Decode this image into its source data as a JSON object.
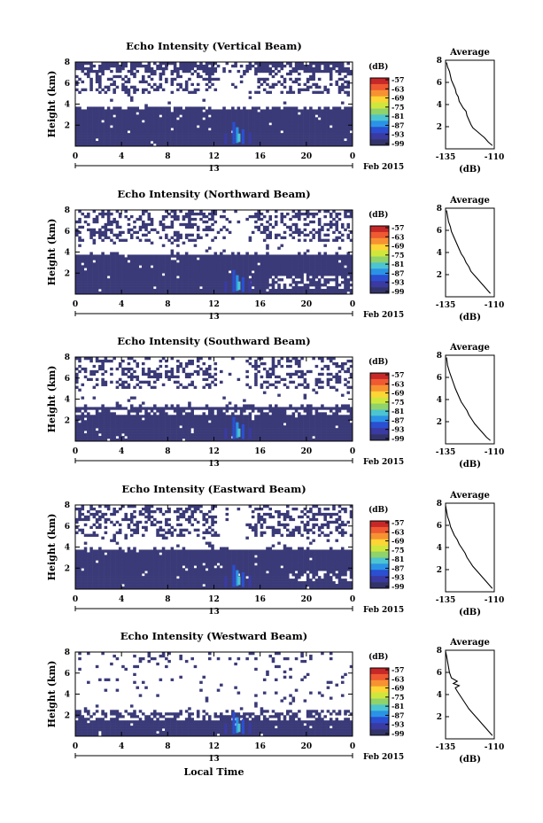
{
  "chart_data": {
    "type": "heatmap",
    "x_ticks": [
      "0",
      "4",
      "8",
      "12",
      "16",
      "20",
      "0"
    ],
    "x_range": [
      0,
      24
    ],
    "date_center": "13",
    "date_label": "Feb 2015",
    "xlabel": "Local Time",
    "ylabel": "Height (km)",
    "y_range": [
      0,
      8
    ],
    "y_ticks": [
      "2",
      "4",
      "6",
      "8"
    ],
    "colorbar": {
      "unit": "(dB)",
      "ticks": [
        "-57",
        "-63",
        "-69",
        "-75",
        "-81",
        "-87",
        "-93",
        "-99"
      ],
      "colors": [
        "#c62828",
        "#ef5a32",
        "#f79232",
        "#fdd535",
        "#cfe73d",
        "#8fd36a",
        "#4cc4d1",
        "#2b93e6",
        "#2b4fd0",
        "#3a3aa3",
        "#33336b"
      ]
    },
    "avg_title": "Average",
    "avg_xlabel": "(dB)",
    "avg_ylim": [
      0,
      8
    ],
    "avg_y_ticks": [
      "2",
      "4",
      "6",
      "8"
    ],
    "panels": [
      {
        "title": "Echo Intensity (Vertical Beam)",
        "avg_xticks": [
          "-135",
          "-110"
        ],
        "avg_xlim": [
          -135,
          -110
        ],
        "avg_profile": [
          [
            -111,
            0.3
          ],
          [
            -113,
            0.6
          ],
          [
            -115,
            1.0
          ],
          [
            -117,
            1.3
          ],
          [
            -119,
            1.6
          ],
          [
            -121,
            1.9
          ],
          [
            -122,
            2.2
          ],
          [
            -123,
            2.6
          ],
          [
            -124,
            3.0
          ],
          [
            -124.5,
            3.4
          ],
          [
            -126,
            3.7
          ],
          [
            -127,
            4.0
          ],
          [
            -128,
            4.3
          ],
          [
            -128.5,
            4.7
          ],
          [
            -129.5,
            5.0
          ],
          [
            -130,
            5.4
          ],
          [
            -131,
            5.8
          ],
          [
            -132,
            6.2
          ],
          [
            -132.5,
            6.6
          ],
          [
            -133,
            7.0
          ],
          [
            -134,
            7.4
          ],
          [
            -134.5,
            7.8
          ]
        ]
      },
      {
        "title": "Echo Intensity (Northward Beam)",
        "avg_xticks": [
          "-135",
          "-110"
        ],
        "avg_xlim": [
          -135,
          -110
        ],
        "avg_profile": [
          [
            -112,
            0.3
          ],
          [
            -114,
            0.7
          ],
          [
            -116,
            1.1
          ],
          [
            -118,
            1.5
          ],
          [
            -120,
            1.9
          ],
          [
            -122,
            2.3
          ],
          [
            -123,
            2.7
          ],
          [
            -124.5,
            3.1
          ],
          [
            -125.5,
            3.5
          ],
          [
            -127,
            3.9
          ],
          [
            -128,
            4.3
          ],
          [
            -129,
            4.7
          ],
          [
            -130,
            5.1
          ],
          [
            -131,
            5.5
          ],
          [
            -132,
            5.9
          ],
          [
            -132.5,
            6.3
          ],
          [
            -133.5,
            6.8
          ],
          [
            -134,
            7.3
          ],
          [
            -134.5,
            7.8
          ]
        ]
      },
      {
        "title": "Echo Intensity (Southward Beam)",
        "avg_xticks": [
          "-135",
          "-110"
        ],
        "avg_xlim": [
          -135,
          -110
        ],
        "avg_profile": [
          [
            -112,
            0.3
          ],
          [
            -114,
            0.6
          ],
          [
            -116,
            1.0
          ],
          [
            -118,
            1.4
          ],
          [
            -120,
            1.8
          ],
          [
            -121.5,
            2.2
          ],
          [
            -123,
            2.6
          ],
          [
            -124,
            3.0
          ],
          [
            -125.5,
            3.4
          ],
          [
            -127,
            3.8
          ],
          [
            -128,
            4.2
          ],
          [
            -129,
            4.6
          ],
          [
            -130,
            5.0
          ],
          [
            -131,
            5.5
          ],
          [
            -132,
            6.0
          ],
          [
            -133,
            6.5
          ],
          [
            -134,
            7.1
          ],
          [
            -134.5,
            7.8
          ]
        ]
      },
      {
        "title": "Echo Intensity (Eastward Beam)",
        "avg_xticks": [
          "-135",
          "-110"
        ],
        "avg_xlim": [
          -135,
          -110
        ],
        "avg_profile": [
          [
            -111,
            0.3
          ],
          [
            -113,
            0.7
          ],
          [
            -115,
            1.1
          ],
          [
            -117,
            1.5
          ],
          [
            -119,
            1.9
          ],
          [
            -121,
            2.3
          ],
          [
            -122.5,
            2.7
          ],
          [
            -124,
            3.1
          ],
          [
            -125,
            3.5
          ],
          [
            -126.5,
            3.9
          ],
          [
            -128,
            4.3
          ],
          [
            -129,
            4.7
          ],
          [
            -130.5,
            5.1
          ],
          [
            -131.5,
            5.5
          ],
          [
            -132.5,
            5.9
          ],
          [
            -133,
            6.3
          ],
          [
            -134,
            6.8
          ],
          [
            -134.5,
            7.3
          ],
          [
            -135,
            7.8
          ]
        ]
      },
      {
        "title": "Echo Intensity (Westward Beam)",
        "avg_xticks": [
          "-135",
          "-110"
        ],
        "avg_xlim": [
          -135,
          -110
        ],
        "avg_profile": [
          [
            -111,
            0.3
          ],
          [
            -113,
            0.7
          ],
          [
            -115,
            1.1
          ],
          [
            -117,
            1.5
          ],
          [
            -119,
            1.9
          ],
          [
            -121,
            2.3
          ],
          [
            -123,
            2.7
          ],
          [
            -124.5,
            3.1
          ],
          [
            -126,
            3.5
          ],
          [
            -127.5,
            3.9
          ],
          [
            -129,
            4.3
          ],
          [
            -130,
            4.6
          ],
          [
            -128,
            4.8
          ],
          [
            -131,
            5.0
          ],
          [
            -129,
            5.2
          ],
          [
            -132,
            5.5
          ],
          [
            -133,
            6.0
          ],
          [
            -133.5,
            6.5
          ],
          [
            -134,
            7.0
          ],
          [
            -134.5,
            7.5
          ],
          [
            -135,
            7.9
          ]
        ]
      }
    ]
  }
}
